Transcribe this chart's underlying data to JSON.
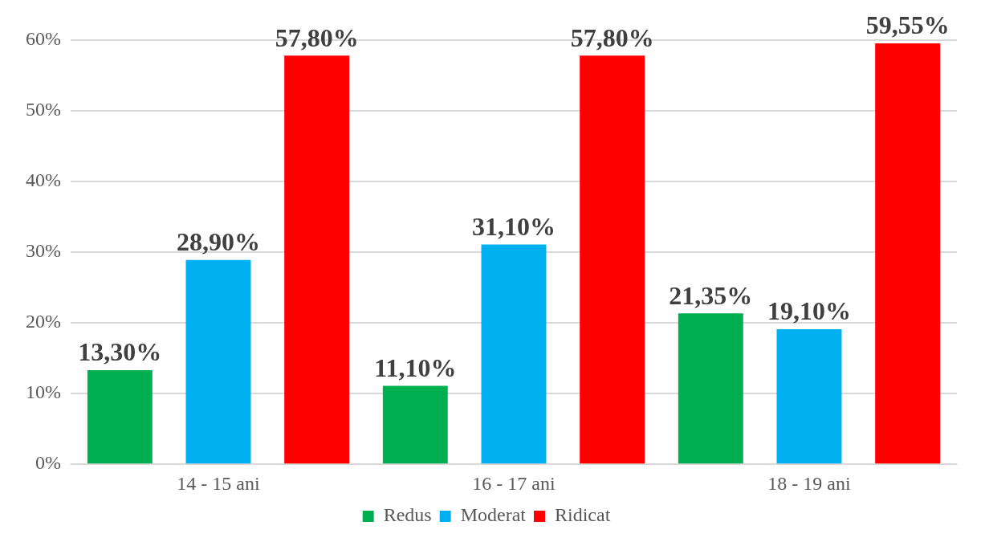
{
  "chart_data": {
    "type": "bar",
    "categories": [
      "14 - 15 ani",
      "16 - 17 ani",
      "18 - 19 ani"
    ],
    "series": [
      {
        "name": "Redus",
        "color": "#00b050",
        "values": [
          13.3,
          11.1,
          21.35
        ],
        "value_labels": [
          "13,30%",
          "11,10%",
          "21,35%"
        ]
      },
      {
        "name": "Moderat",
        "color": "#00b0f0",
        "values": [
          28.9,
          31.1,
          19.1
        ],
        "value_labels": [
          "28,90%",
          "31,10%",
          "19,10%"
        ]
      },
      {
        "name": "Ridicat",
        "color": "#ff0000",
        "values": [
          57.8,
          57.8,
          59.55
        ],
        "value_labels": [
          "57,80%",
          "57,80%",
          "59,55%"
        ]
      }
    ],
    "ylim": [
      0,
      60
    ],
    "yticks": [
      {
        "value": 0,
        "label": "0%"
      },
      {
        "value": 10,
        "label": "10%"
      },
      {
        "value": 20,
        "label": "20%"
      },
      {
        "value": 30,
        "label": "30%"
      },
      {
        "value": 40,
        "label": "40%"
      },
      {
        "value": 50,
        "label": "50%"
      },
      {
        "value": 60,
        "label": "60%"
      }
    ],
    "grid": "y",
    "legend": "bottom"
  }
}
